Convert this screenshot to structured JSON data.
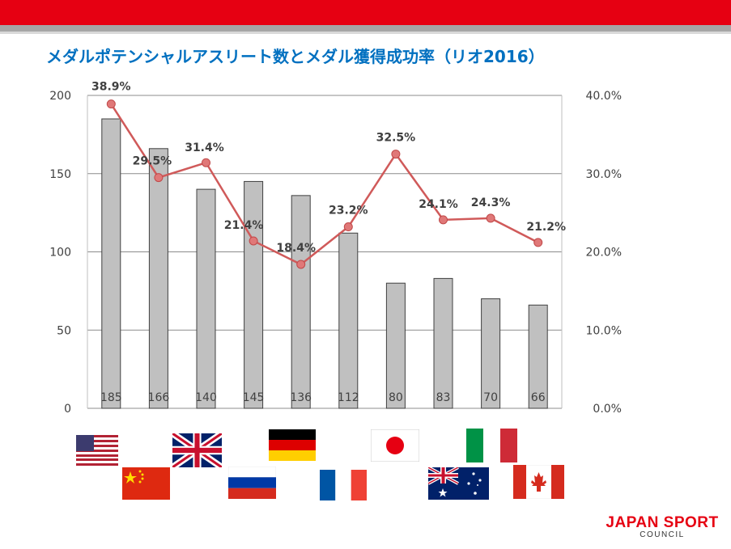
{
  "slide": {
    "title": "メダルポテンシャルアスリート数とメダル獲得成功率（リオ2016）"
  },
  "chart_data": {
    "type": "bar",
    "title": "メダルポテンシャルアスリート数とメダル獲得成功率（リオ2016）",
    "categories": [
      "USA",
      "China",
      "Great Britain",
      "Russia",
      "Germany",
      "France",
      "Japan",
      "Australia",
      "Italy",
      "Canada"
    ],
    "series": [
      {
        "type": "bar",
        "axis": "left",
        "values": [
          185,
          166,
          140,
          145,
          136,
          112,
          80,
          83,
          70,
          66
        ],
        "data_labels": [
          "185",
          "166",
          "140",
          "145",
          "136",
          "112",
          "80",
          "83",
          "70",
          "66"
        ]
      },
      {
        "type": "line",
        "axis": "right",
        "values": [
          38.9,
          29.5,
          31.4,
          21.4,
          18.4,
          23.2,
          32.5,
          24.1,
          24.3,
          21.2
        ],
        "data_labels": [
          "38.9%",
          "29.5%",
          "31.4%",
          "21.4%",
          "18.4%",
          "23.2%",
          "32.5%",
          "24.1%",
          "24.3%",
          "21.2%"
        ]
      }
    ],
    "y_left": {
      "ylim": [
        0,
        200
      ],
      "ticks": [
        "0",
        "50",
        "100",
        "150",
        "200"
      ]
    },
    "y_right": {
      "ylim": [
        0,
        40
      ],
      "ticks": [
        "0.0%",
        "10.0%",
        "20.0%",
        "30.0%",
        "40.0%"
      ]
    },
    "grid": true,
    "colors": {
      "bar_fill": "#c0c0c0",
      "bar_stroke": "#404040",
      "line": "#d05a5a",
      "marker": "#e07878",
      "grid": "#8c8c8c"
    }
  },
  "flags": {
    "row1": [
      "USA",
      "Great Britain",
      "Germany",
      "Japan",
      "Italy"
    ],
    "row2": [
      "China",
      "Russia",
      "France",
      "Australia",
      "Canada"
    ]
  },
  "logo": {
    "main": "JAPAN SPORT",
    "sub": "COUNCIL"
  },
  "colors": {
    "brand_red": "#e60012",
    "title_blue": "#0070c0"
  }
}
